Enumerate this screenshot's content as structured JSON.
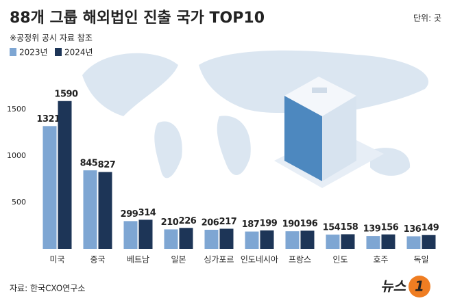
{
  "chart_data": {
    "type": "bar",
    "title": "88개 그룹 해외법인 진출 국가 TOP10",
    "subtitle": "※공정위 공시 자료 참조",
    "unit": "단위: 곳",
    "categories": [
      "미국",
      "중국",
      "베트남",
      "일본",
      "싱가포르",
      "인도네시아",
      "프랑스",
      "인도",
      "호주",
      "독일"
    ],
    "series": [
      {
        "name": "2023년",
        "color": "#7ea6d3",
        "values": [
          1321,
          845,
          299,
          210,
          206,
          187,
          190,
          154,
          139,
          136
        ]
      },
      {
        "name": "2024년",
        "color": "#1d3557",
        "values": [
          1590,
          827,
          314,
          226,
          217,
          199,
          196,
          158,
          156,
          149
        ]
      }
    ],
    "ylim": [
      0,
      1900
    ],
    "yticks": [
      500,
      1000,
      1500
    ],
    "grid": false,
    "source": "자료: 한국CXO연구소"
  },
  "logo": {
    "text": "뉴스",
    "mark": "1"
  }
}
